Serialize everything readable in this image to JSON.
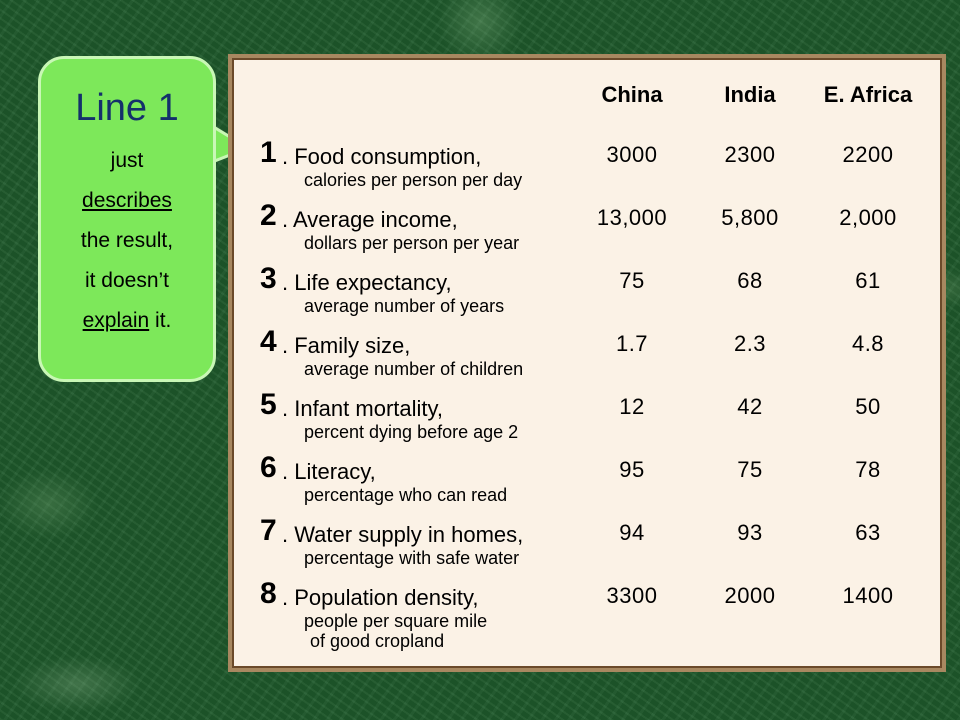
{
  "callout": {
    "title": "Line 1",
    "lines": [
      "just",
      "describes",
      "the result,",
      "it doesn’t"
    ],
    "explain_word": "explain",
    "explain_tail": " it."
  },
  "table": {
    "columns": [
      "China",
      "India",
      "E. Africa"
    ],
    "rows": [
      {
        "num": "1",
        "label": ". Food consumption,",
        "sub": "calories per person per day",
        "sub2": "",
        "values": [
          "3000",
          "2300",
          "2200"
        ]
      },
      {
        "num": "2",
        "label": ". Average income,",
        "sub": "dollars per person per year",
        "sub2": "",
        "values": [
          "13,000",
          "5,800",
          "2,000"
        ]
      },
      {
        "num": "3",
        "label": ". Life expectancy,",
        "sub": "average number of years",
        "sub2": "",
        "values": [
          "75",
          "68",
          "61"
        ]
      },
      {
        "num": "4",
        "label": ". Family size,",
        "sub": "average number of children",
        "sub2": "",
        "values": [
          "1.7",
          "2.3",
          "4.8"
        ]
      },
      {
        "num": "5",
        "label": ". Infant mortality,",
        "sub": "percent dying before age 2",
        "sub2": "",
        "values": [
          "12",
          "42",
          "50"
        ]
      },
      {
        "num": "6",
        "label": ". Literacy,",
        "sub": "percentage who can read",
        "sub2": "",
        "values": [
          "95",
          "75",
          "78"
        ]
      },
      {
        "num": "7",
        "label": ". Water supply in homes,",
        "sub": "percentage with safe water",
        "sub2": "",
        "values": [
          "94",
          "93",
          "63"
        ]
      },
      {
        "num": "8",
        "label": ". Population density,",
        "sub": "people per square mile",
        "sub2": "of good cropland",
        "values": [
          "3300",
          "2000",
          "1400"
        ]
      }
    ]
  },
  "colors": {
    "callout_fill": "#7de85a",
    "callout_title": "#14306b",
    "panel_bg": "#fbf2e6",
    "background": "#1f5a2c"
  }
}
